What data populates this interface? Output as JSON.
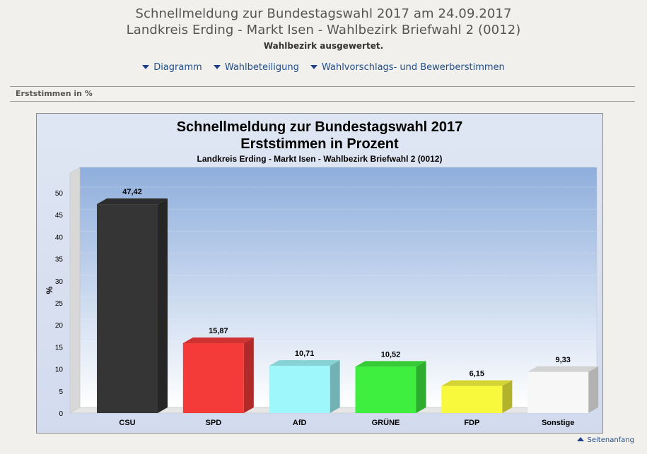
{
  "header": {
    "title_line1": "Schnellmeldung zur Bundestagswahl 2017 am 24.09.2017",
    "title_line2": "Landkreis Erding - Markt Isen - Wahlbezirk Briefwahl 2 (0012)",
    "status": "Wahlbezirk ausgewertet."
  },
  "nav": {
    "items": [
      {
        "label": "Diagramm",
        "icon": "arrow-down-icon"
      },
      {
        "label": "Wahlbeteiligung",
        "icon": "arrow-down-icon"
      },
      {
        "label": "Wahlvorschlags- und Bewerberstimmen",
        "icon": "arrow-down-icon"
      }
    ]
  },
  "section": {
    "title": "Erststimmen in %"
  },
  "chart_data": {
    "type": "bar",
    "title": "Schnellmeldung zur Bundestagswahl 2017",
    "subtitle": "Erststimmen in Prozent",
    "caption": "Landkreis Erding - Markt Isen - Wahlbezirk Briefwahl 2 (0012)",
    "ylabel": "%",
    "xlabel": "",
    "ylim": [
      0,
      50
    ],
    "yticks": [
      0,
      5,
      10,
      15,
      20,
      25,
      30,
      35,
      40,
      45,
      50
    ],
    "categories": [
      "CSU",
      "SPD",
      "AfD",
      "GRÜNE",
      "FDP",
      "Sonstige"
    ],
    "values": [
      47.42,
      15.87,
      10.71,
      10.52,
      6.15,
      9.33
    ],
    "value_labels": [
      "47,42",
      "15,87",
      "10,71",
      "10,52",
      "6,15",
      "9,33"
    ],
    "colors": [
      "#353535",
      "#f53a3a",
      "#9ef7fb",
      "#3fef3f",
      "#f8f83c",
      "#f7f7f7"
    ],
    "grid": true,
    "legend": "none"
  },
  "footer": {
    "link_label": "Seitenanfang",
    "icon": "arrow-up-icon"
  }
}
